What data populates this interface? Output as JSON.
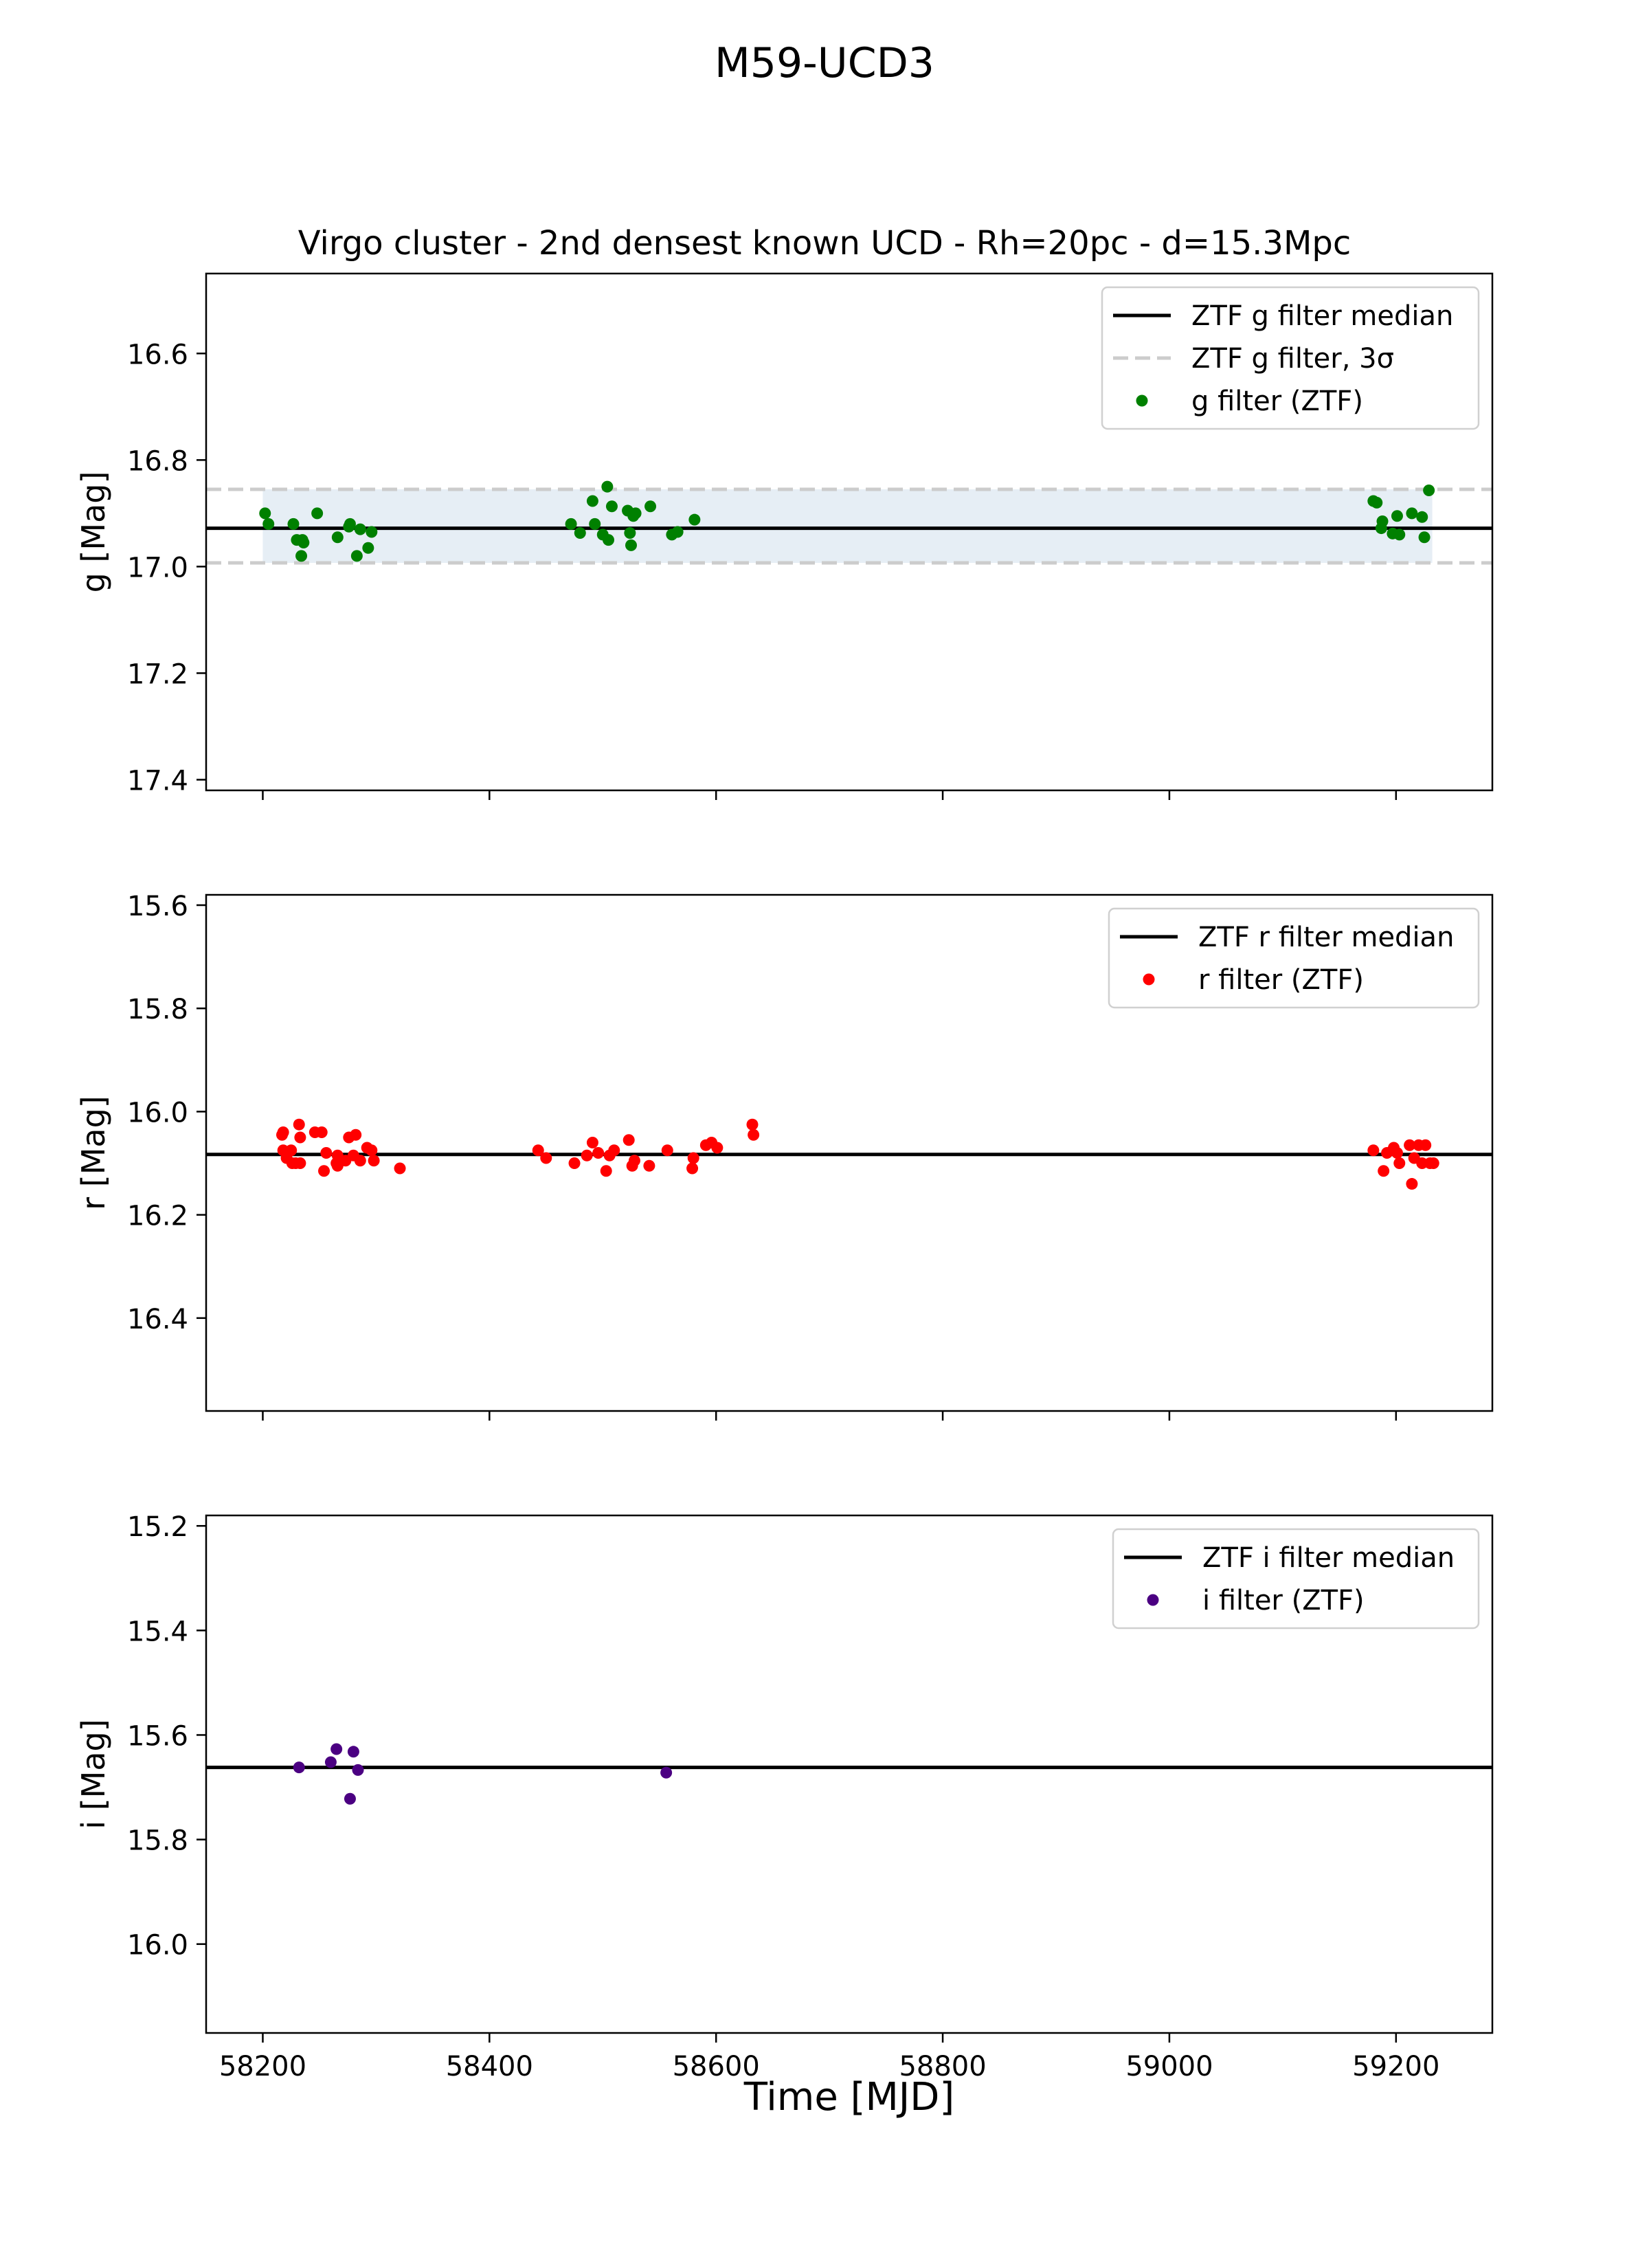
{
  "figure": {
    "suptitle": "M59-UCD3",
    "subtitle": "Virgo cluster - 2nd densest known UCD - Rh=20pc - d=15.3Mpc",
    "xlabel": "Time [MJD]"
  },
  "colors": {
    "g": "#008000",
    "r": "#ff0000",
    "i": "#4b0082",
    "median": "#000000",
    "sigma_line": "#cccccc",
    "sigma_fill": "#e6eef5"
  },
  "chart_data": [
    {
      "type": "scatter",
      "id": "g",
      "ylabel": "g [Mag]",
      "xlim": [
        58150,
        59285
      ],
      "ylim": [
        17.42,
        16.45
      ],
      "inverted_y": true,
      "x_ticks": [
        58200,
        58400,
        58600,
        58800,
        59000,
        59200
      ],
      "show_x_tick_labels": false,
      "y_ticks": [
        16.6,
        16.8,
        17.0,
        17.2,
        17.4
      ],
      "y_tick_labels": [
        "16.6",
        "16.8",
        "17.0",
        "17.2",
        "17.4"
      ],
      "median": 16.928,
      "sigma_band": [
        16.855,
        16.993
      ],
      "fill_x": [
        58200,
        59232
      ],
      "legend": [
        "ZTF g filter median",
        "ZTF g filter, 3σ",
        "g filter (ZTF)"
      ],
      "x": [
        58202,
        58205,
        58227,
        58230,
        58234,
        58235,
        58236,
        58248,
        58266,
        58276,
        58277,
        58283,
        58286,
        58293,
        58296,
        58472,
        58480,
        58491,
        58493,
        58500,
        58504,
        58505,
        58508,
        58522,
        58524,
        58525,
        58527,
        58529,
        58542,
        58561,
        58566,
        58581,
        59180,
        59183,
        59187,
        59188,
        59197,
        59201,
        59203,
        59214,
        59223,
        59225,
        59229
      ],
      "y": [
        16.9,
        16.92,
        16.92,
        16.95,
        16.98,
        16.95,
        16.955,
        16.9,
        16.945,
        16.925,
        16.92,
        16.98,
        16.93,
        16.965,
        16.935,
        16.92,
        16.937,
        16.877,
        16.92,
        16.94,
        16.85,
        16.95,
        16.887,
        16.895,
        16.937,
        16.96,
        16.905,
        16.9,
        16.887,
        16.94,
        16.935,
        16.912,
        16.877,
        16.88,
        16.928,
        16.915,
        16.938,
        16.905,
        16.94,
        16.9,
        16.907,
        16.945,
        16.857
      ]
    },
    {
      "type": "scatter",
      "id": "r",
      "ylabel": "r [Mag]",
      "xlim": [
        58150,
        59285
      ],
      "ylim": [
        16.58,
        15.58
      ],
      "inverted_y": true,
      "x_ticks": [
        58200,
        58400,
        58600,
        58800,
        59000,
        59200
      ],
      "show_x_tick_labels": false,
      "y_ticks": [
        15.6,
        15.8,
        16.0,
        16.2,
        16.4
      ],
      "y_tick_labels": [
        "15.6",
        "15.8",
        "16.0",
        "16.2",
        "16.4"
      ],
      "median": 16.083,
      "legend": [
        "ZTF r filter median",
        "r filter (ZTF)"
      ],
      "x": [
        58217,
        58218,
        58218,
        58221,
        58225,
        58226,
        58229,
        58232,
        58233,
        58233,
        58246,
        58252,
        58254,
        58256,
        58265,
        58266,
        58266,
        58273,
        58276,
        58280,
        58282,
        58286,
        58292,
        58296,
        58298,
        58321,
        58443,
        58450,
        58475,
        58486,
        58491,
        58496,
        58503,
        58506,
        58510,
        58523,
        58526,
        58528,
        58541,
        58557,
        58579,
        58580,
        58591,
        58596,
        58601,
        58632,
        58633,
        59180,
        59189,
        59192,
        59198,
        59201,
        59203,
        59212,
        59214,
        59216,
        59220,
        59223,
        59226,
        59230,
        59233
      ],
      "y": [
        16.045,
        16.075,
        16.04,
        16.09,
        16.075,
        16.1,
        16.1,
        16.025,
        16.05,
        16.1,
        16.04,
        16.04,
        16.115,
        16.08,
        16.1,
        16.085,
        16.105,
        16.095,
        16.05,
        16.085,
        16.045,
        16.095,
        16.07,
        16.075,
        16.095,
        16.11,
        16.075,
        16.09,
        16.1,
        16.085,
        16.06,
        16.08,
        16.115,
        16.085,
        16.075,
        16.055,
        16.105,
        16.095,
        16.105,
        16.075,
        16.11,
        16.09,
        16.065,
        16.06,
        16.07,
        16.025,
        16.045,
        16.075,
        16.115,
        16.08,
        16.07,
        16.08,
        16.1,
        16.065,
        16.14,
        16.09,
        16.065,
        16.1,
        16.065,
        16.1,
        16.1
      ]
    },
    {
      "type": "scatter",
      "id": "i",
      "ylabel": "i [Mag]",
      "xlim": [
        58150,
        59285
      ],
      "ylim": [
        16.17,
        15.18
      ],
      "inverted_y": true,
      "x_ticks": [
        58200,
        58400,
        58600,
        58800,
        59000,
        59200
      ],
      "show_x_tick_labels": true,
      "x_tick_labels": [
        "58200",
        "58400",
        "58600",
        "58800",
        "59000",
        "59200"
      ],
      "y_ticks": [
        15.2,
        15.4,
        15.6,
        15.8,
        16.0
      ],
      "y_tick_labels": [
        "15.2",
        "15.4",
        "15.6",
        "15.8",
        "16.0"
      ],
      "median": 15.662,
      "legend": [
        "ZTF i filter median",
        "i filter (ZTF)"
      ],
      "x": [
        58232,
        58260,
        58265,
        58277,
        58280,
        58284,
        58556
      ],
      "y": [
        15.662,
        15.652,
        15.627,
        15.722,
        15.632,
        15.667,
        15.672
      ]
    }
  ]
}
